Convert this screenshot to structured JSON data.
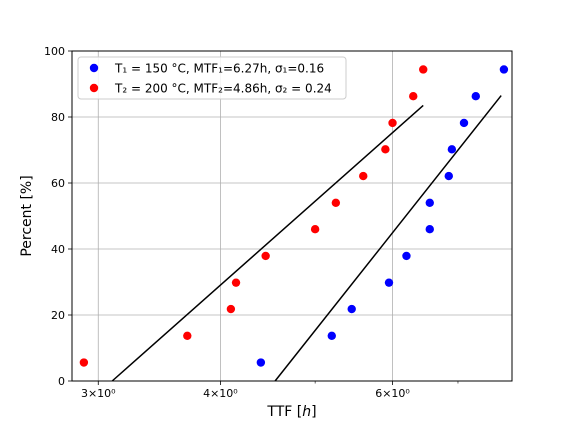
{
  "chart_data": {
    "type": "scatter",
    "xlabel": "TTF [h]",
    "ylabel": "Percent [%]",
    "xscale": "log",
    "xlim": [
      2.82,
      7.95
    ],
    "ylim": [
      0,
      100
    ],
    "xticks": [
      {
        "value": 3,
        "label": "3×10⁰"
      },
      {
        "value": 4,
        "label": "4×10⁰"
      },
      {
        "value": 6,
        "label": "6×10⁰"
      }
    ],
    "xminor": [
      5,
      7
    ],
    "yticks": [
      0,
      20,
      40,
      60,
      80,
      100
    ],
    "grid": true,
    "legend": "top-left",
    "series": [
      {
        "name": "T₁ = 150 °C, MTF₁=6.27h, σ₁=0.16",
        "color": "#0000ff",
        "x": [
          4.4,
          5.2,
          5.45,
          5.95,
          6.2,
          6.55,
          6.55,
          6.85,
          6.9,
          7.1,
          7.3,
          7.8
        ],
        "y": [
          5.6,
          13.7,
          21.8,
          29.8,
          37.9,
          46.0,
          54.0,
          62.1,
          70.2,
          78.2,
          86.3,
          94.4
        ],
        "fit": {
          "x": [
            4.55,
            7.75
          ],
          "y": [
            0,
            86.5
          ]
        }
      },
      {
        "name": "T₂ = 200 °C, MTF₂=4.86h, σ₂ = 0.24",
        "color": "#ff0000",
        "x": [
          2.9,
          3.7,
          4.1,
          4.15,
          4.45,
          5.0,
          5.25,
          5.6,
          5.9,
          6.0,
          6.3,
          6.45
        ],
        "y": [
          5.6,
          13.7,
          21.8,
          29.8,
          37.9,
          46.0,
          54.0,
          62.1,
          70.2,
          78.2,
          86.3,
          94.4
        ],
        "fit": {
          "x": [
            3.1,
            6.45
          ],
          "y": [
            0,
            83.5
          ]
        }
      }
    ]
  }
}
